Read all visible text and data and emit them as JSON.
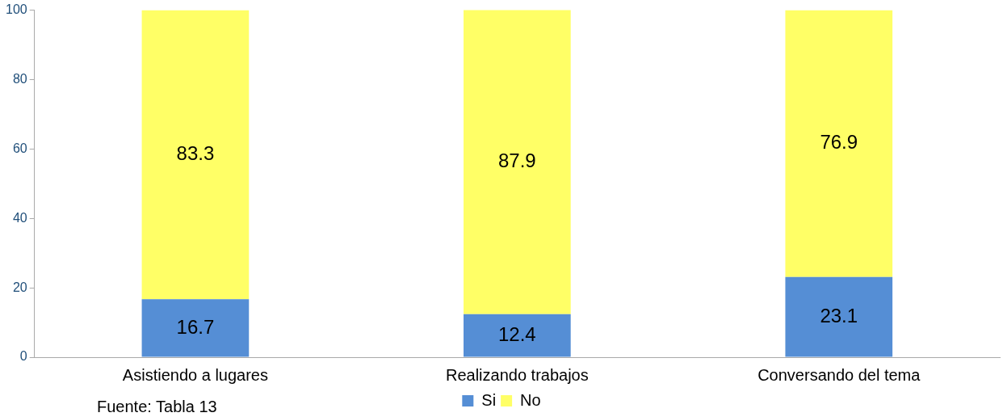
{
  "chart_data": {
    "type": "bar",
    "stacked": true,
    "categories": [
      "Asistiendo a lugares",
      "Realizando trabajos",
      "Conversando del tema"
    ],
    "series": [
      {
        "name": "Si",
        "color": "#558ed5",
        "values": [
          16.7,
          12.4,
          23.1
        ]
      },
      {
        "name": "No",
        "color": "#ffff66",
        "values": [
          83.3,
          87.9,
          76.9
        ]
      }
    ],
    "ylim": [
      0,
      100
    ],
    "yticks": [
      0,
      20,
      40,
      60,
      80,
      100
    ],
    "grid": false,
    "legend": "bottom",
    "data_labels": true,
    "annotations": [
      "Fuente: Tabla 13"
    ]
  }
}
